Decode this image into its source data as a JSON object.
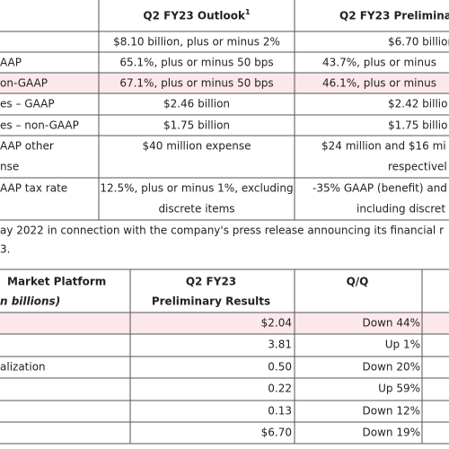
{
  "table1": {
    "header": {
      "outlook": "Q2 FY23 Outlook",
      "outlook_note": "1",
      "prelim": "Q2 FY23 Preliminar"
    },
    "rows": [
      {
        "outlook": [
          "$8.10 billion, plus or minus 2%"
        ],
        "prelim": [
          "$6.70 billion"
        ]
      },
      {
        "label": [
          "AAP"
        ],
        "outlook": [
          "65.1%, plus or minus 50 bps"
        ],
        "prelim": [
          "43.7%, plus or minus"
        ]
      },
      {
        "label": [
          "on-GAAP"
        ],
        "outlook": [
          "67.1%, plus or minus 50 bps"
        ],
        "prelim": [
          "46.1%, plus or minus"
        ]
      },
      {
        "label": [
          "es – GAAP"
        ],
        "outlook": [
          "$2.46 billion"
        ],
        "prelim": [
          "$2.42 billio"
        ]
      },
      {
        "label": [
          "es – non-GAAP"
        ],
        "outlook": [
          "$1.75 billion"
        ],
        "prelim": [
          "$1.75 billio"
        ]
      },
      {
        "label": [
          "AAP other",
          "nse"
        ],
        "outlook": [
          "$40 million expense"
        ],
        "prelim": [
          "$24 million and $16 mi",
          "respectivel"
        ]
      },
      {
        "label": [
          "AAP tax rate"
        ],
        "outlook": [
          "12.5%, plus or minus 1%, excluding",
          "discrete items"
        ],
        "prelim": [
          "-35% GAAP (benefit) and",
          "including discret"
        ]
      }
    ]
  },
  "paragraph": [
    "ay 2022 in connection with the company's press release announcing its financial r",
    "3."
  ],
  "table2": {
    "header": {
      "platform": "Market Platform",
      "units": "n billions)",
      "results": [
        "Q2 FY23",
        "Preliminary Results"
      ],
      "change": "Q/Q"
    },
    "rows": [
      {
        "value": "$2.04",
        "change": "Down 44%"
      },
      {
        "value": "3.81",
        "change": "Up 1%"
      },
      {
        "label": "alization",
        "value": "0.50",
        "change": "Down 20%"
      },
      {
        "value": "0.22",
        "change": "Up 59%"
      },
      {
        "value": "0.13",
        "change": "Down 12%"
      },
      {
        "value": "$6.70",
        "change": "Down 19%"
      }
    ]
  }
}
